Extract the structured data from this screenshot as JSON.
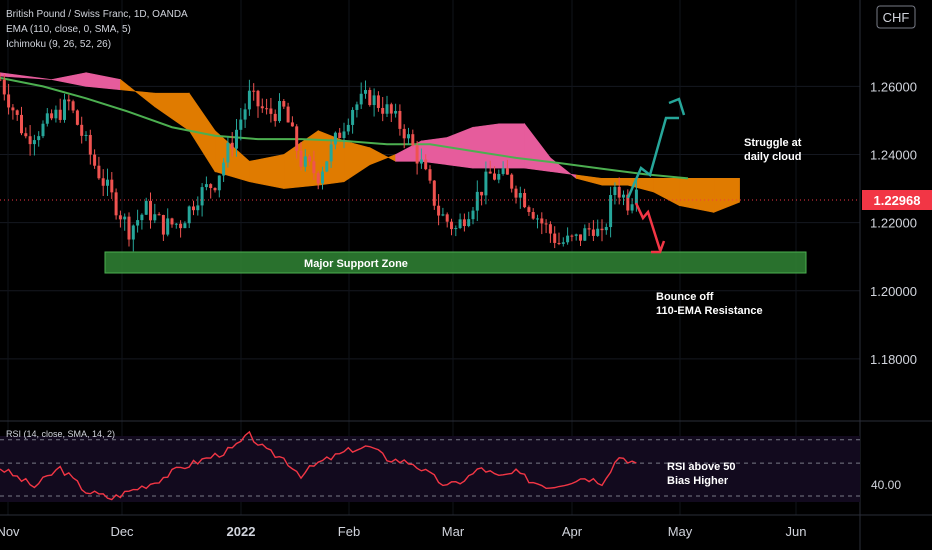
{
  "header": {
    "title": "British Pound / Swiss Franc, 1D, OANDA",
    "ema_label": "EMA (110, close, 0, SMA, 5)",
    "ichimoku_label": "Ichimoku (9, 26, 52, 26)",
    "currency_badge": "CHF"
  },
  "rsi_panel": {
    "label": "RSI (14, close, SMA, 14, 2)",
    "axis_value": "40.00"
  },
  "annotations": {
    "support_zone": "Major Support Zone",
    "struggle_line1": "Struggle at",
    "struggle_line2": "daily cloud",
    "bounce_line1": "Bounce off",
    "bounce_line2": "110-EMA Resistance",
    "rsi_line1": "RSI above 50",
    "rsi_line2": "Bias Higher"
  },
  "colors": {
    "background": "#000000",
    "up_candle": "#26a69a",
    "down_candle": "#ef5350",
    "ema": "#4caf50",
    "cloud_bullish": "#e65c9c",
    "cloud_bearish": "#e07b00",
    "support_zone": "#2e7d32",
    "rsi": "#f23645",
    "arrow_up": "#26a69a",
    "arrow_down": "#f23645",
    "last_price_badge": "#f23645"
  },
  "chart_data": {
    "type": "candlestick",
    "symbol": "GBPCHF",
    "timeframe": "1D",
    "x_tick_labels": [
      "Nov",
      "Dec",
      "2022",
      "Feb",
      "Mar",
      "Apr",
      "May",
      "Jun"
    ],
    "y_tick_labels": [
      "1.26000",
      "1.24000",
      "1.22000",
      "1.20000",
      "1.18000"
    ],
    "ylim": [
      1.165,
      1.283
    ],
    "last_price": "1.22968",
    "support_zone": [
      1.2095,
      1.2155
    ],
    "price_path": [
      [
        0,
        1.262
      ],
      [
        6,
        1.245
      ],
      [
        10,
        1.248
      ],
      [
        16,
        1.255
      ],
      [
        22,
        1.237
      ],
      [
        27,
        1.225
      ],
      [
        30,
        1.218
      ],
      [
        34,
        1.224
      ],
      [
        38,
        1.219
      ],
      [
        42,
        1.22
      ],
      [
        46,
        1.228
      ],
      [
        50,
        1.232
      ],
      [
        54,
        1.244
      ],
      [
        58,
        1.257
      ],
      [
        62,
        1.252
      ],
      [
        66,
        1.253
      ],
      [
        70,
        1.238
      ],
      [
        74,
        1.234
      ],
      [
        78,
        1.244
      ],
      [
        82,
        1.254
      ],
      [
        86,
        1.257
      ],
      [
        90,
        1.253
      ],
      [
        94,
        1.247
      ],
      [
        98,
        1.237
      ],
      [
        102,
        1.223
      ],
      [
        106,
        1.218
      ],
      [
        110,
        1.226
      ],
      [
        114,
        1.234
      ],
      [
        118,
        1.233
      ],
      [
        122,
        1.227
      ],
      [
        126,
        1.22
      ],
      [
        130,
        1.214
      ],
      [
        134,
        1.215
      ],
      [
        138,
        1.219
      ],
      [
        140,
        1.215
      ],
      [
        143,
        1.231
      ],
      [
        146,
        1.226
      ],
      [
        148,
        1.2297
      ]
    ],
    "ema_110": [
      [
        0,
        1.2625
      ],
      [
        10,
        1.26
      ],
      [
        20,
        1.2565
      ],
      [
        30,
        1.2525
      ],
      [
        40,
        1.248
      ],
      [
        50,
        1.2455
      ],
      [
        60,
        1.2445
      ],
      [
        70,
        1.2445
      ],
      [
        80,
        1.244
      ],
      [
        90,
        1.243
      ],
      [
        100,
        1.243
      ],
      [
        110,
        1.241
      ],
      [
        120,
        1.239
      ],
      [
        130,
        1.2375
      ],
      [
        140,
        1.2358
      ],
      [
        150,
        1.2342
      ],
      [
        160,
        1.233
      ]
    ],
    "ichimoku_cloud": [
      [
        0,
        1.264,
        1.263
      ],
      [
        12,
        1.262,
        1.262
      ],
      [
        20,
        1.264,
        1.26
      ],
      [
        28,
        1.262,
        1.259
      ],
      [
        36,
        1.254,
        1.258
      ],
      [
        44,
        1.247,
        1.258
      ],
      [
        50,
        1.235,
        1.247
      ],
      [
        58,
        1.232,
        1.238
      ],
      [
        66,
        1.23,
        1.24
      ],
      [
        74,
        1.231,
        1.247
      ],
      [
        80,
        1.232,
        1.244
      ],
      [
        86,
        1.237,
        1.242
      ],
      [
        92,
        1.24,
        1.238
      ],
      [
        98,
        1.244,
        1.238
      ],
      [
        104,
        1.245,
        1.237
      ],
      [
        110,
        1.248,
        1.236
      ],
      [
        116,
        1.249,
        1.236
      ],
      [
        122,
        1.249,
        1.236
      ],
      [
        128,
        1.239,
        1.235
      ],
      [
        134,
        1.233,
        1.234
      ],
      [
        140,
        1.231,
        1.233
      ],
      [
        146,
        1.231,
        1.233
      ],
      [
        152,
        1.229,
        1.233
      ],
      [
        158,
        1.225,
        1.233
      ],
      [
        166,
        1.223,
        1.233
      ],
      [
        172,
        1.226,
        1.233
      ]
    ],
    "rsi_series": [
      [
        0,
        48
      ],
      [
        8,
        40
      ],
      [
        14,
        48
      ],
      [
        20,
        38
      ],
      [
        26,
        35
      ],
      [
        30,
        38
      ],
      [
        36,
        42
      ],
      [
        42,
        48
      ],
      [
        48,
        52
      ],
      [
        54,
        56
      ],
      [
        58,
        62
      ],
      [
        62,
        55
      ],
      [
        66,
        52
      ],
      [
        70,
        45
      ],
      [
        74,
        50
      ],
      [
        78,
        53
      ],
      [
        82,
        56
      ],
      [
        86,
        57
      ],
      [
        90,
        52
      ],
      [
        96,
        50
      ],
      [
        100,
        45
      ],
      [
        104,
        40
      ],
      [
        108,
        43
      ],
      [
        112,
        48
      ],
      [
        116,
        44
      ],
      [
        120,
        46
      ],
      [
        124,
        42
      ],
      [
        128,
        40
      ],
      [
        132,
        42
      ],
      [
        136,
        44
      ],
      [
        140,
        42
      ],
      [
        144,
        53
      ],
      [
        148,
        50
      ]
    ],
    "rsi_ylim": [
      30,
      65
    ],
    "rsi_guides": [
      36,
      50,
      60
    ]
  }
}
